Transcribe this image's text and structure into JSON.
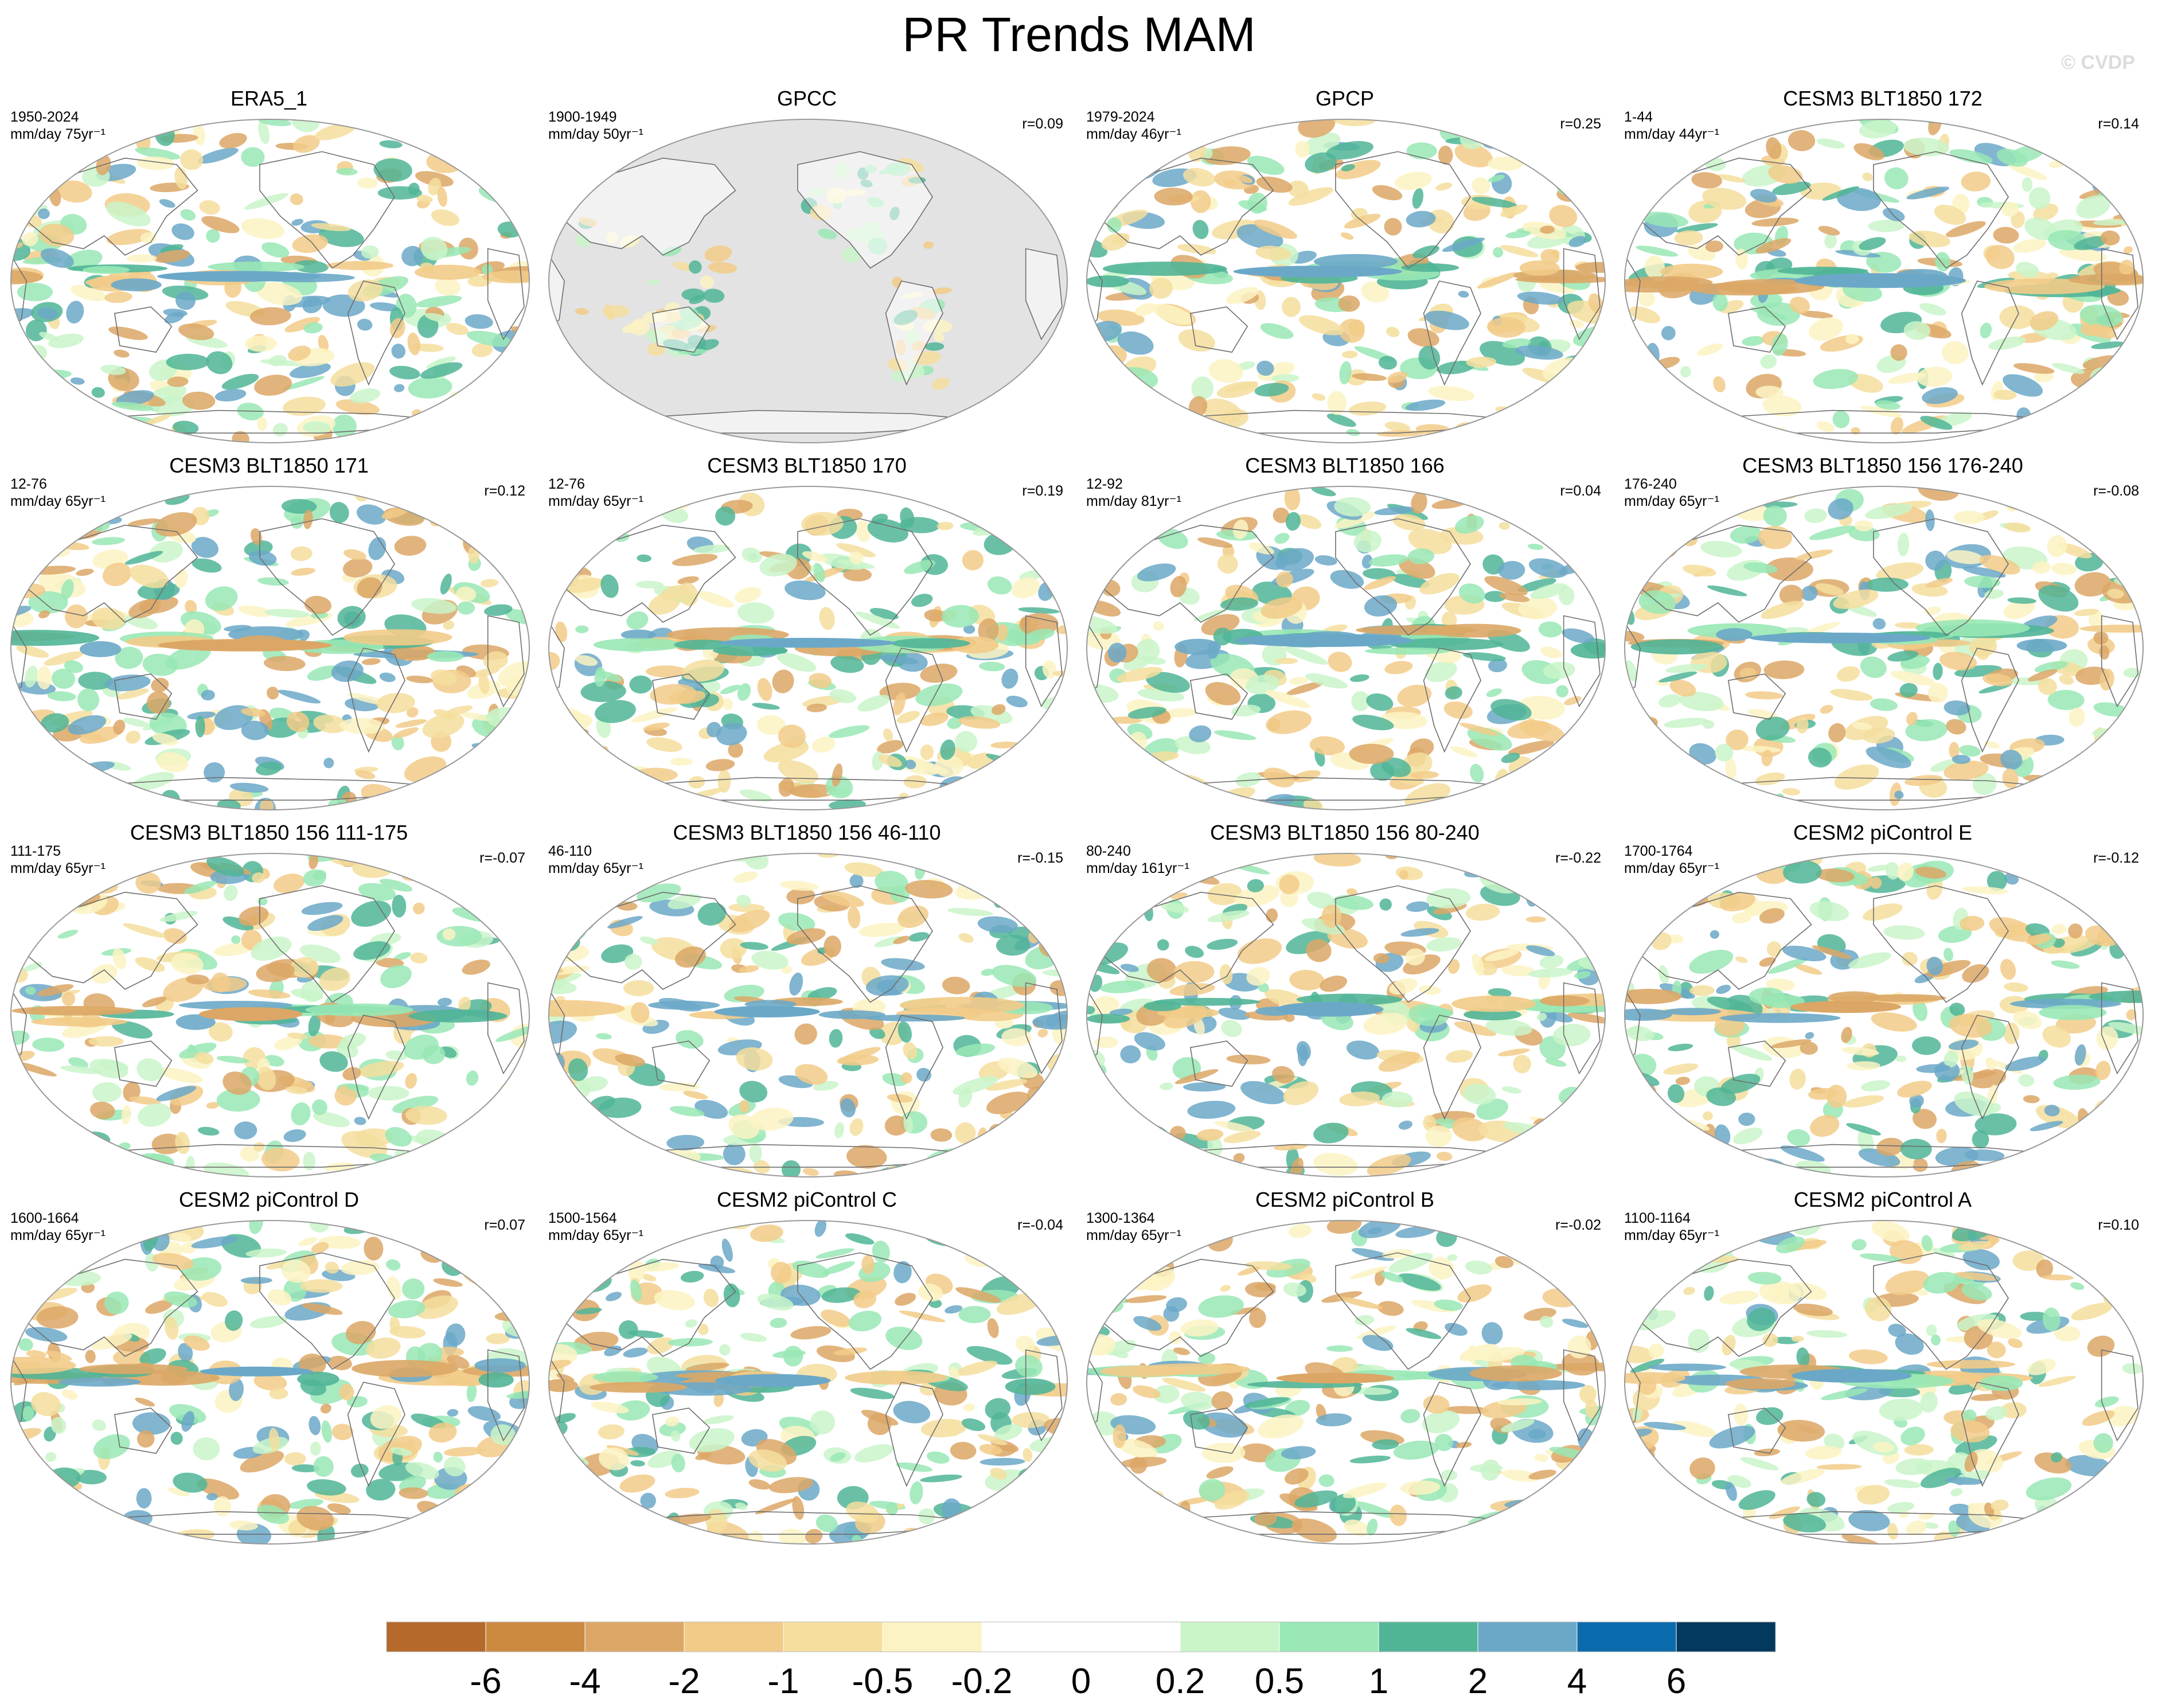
{
  "title": "PR Trends MAM",
  "watermark": "© CVDP",
  "panels": [
    {
      "title": "ERA5_1",
      "years": "1950-2024",
      "units": "mm/day 75yr⁻¹",
      "r": "",
      "masked": false
    },
    {
      "title": "GPCC",
      "years": "1900-1949",
      "units": "mm/day 50yr⁻¹",
      "r": "r=0.09",
      "masked": true
    },
    {
      "title": "GPCP",
      "years": "1979-2024",
      "units": "mm/day 46yr⁻¹",
      "r": "r=0.25",
      "masked": false
    },
    {
      "title": "CESM3 BLT1850 172",
      "years": "1-44",
      "units": "mm/day 44yr⁻¹",
      "r": "r=0.14",
      "masked": false
    },
    {
      "title": "CESM3 BLT1850 171",
      "years": "12-76",
      "units": "mm/day 65yr⁻¹",
      "r": "r=0.12",
      "masked": false
    },
    {
      "title": "CESM3 BLT1850 170",
      "years": "12-76",
      "units": "mm/day 65yr⁻¹",
      "r": "r=0.19",
      "masked": false
    },
    {
      "title": "CESM3 BLT1850 166",
      "years": "12-92",
      "units": "mm/day 81yr⁻¹",
      "r": "r=0.04",
      "masked": false
    },
    {
      "title": "CESM3 BLT1850 156 176-240",
      "years": "176-240",
      "units": "mm/day 65yr⁻¹",
      "r": "r=-0.08",
      "masked": false
    },
    {
      "title": "CESM3 BLT1850 156 111-175",
      "years": "111-175",
      "units": "mm/day 65yr⁻¹",
      "r": "r=-0.07",
      "masked": false
    },
    {
      "title": "CESM3 BLT1850 156 46-110",
      "years": "46-110",
      "units": "mm/day 65yr⁻¹",
      "r": "r=-0.15",
      "masked": false
    },
    {
      "title": "CESM3 BLT1850 156 80-240",
      "years": "80-240",
      "units": "mm/day 161yr⁻¹",
      "r": "r=-0.22",
      "masked": false
    },
    {
      "title": "CESM2 piControl E",
      "years": "1700-1764",
      "units": "mm/day 65yr⁻¹",
      "r": "r=-0.12",
      "masked": false
    },
    {
      "title": "CESM2 piControl D",
      "years": "1600-1664",
      "units": "mm/day 65yr⁻¹",
      "r": "r=0.07",
      "masked": false
    },
    {
      "title": "CESM2 piControl C",
      "years": "1500-1564",
      "units": "mm/day 65yr⁻¹",
      "r": "r=-0.04",
      "masked": false
    },
    {
      "title": "CESM2 piControl B",
      "years": "1300-1364",
      "units": "mm/day 65yr⁻¹",
      "r": "r=-0.02",
      "masked": false
    },
    {
      "title": "CESM2 piControl A",
      "years": "1100-1164",
      "units": "mm/day 65yr⁻¹",
      "r": "r=0.10",
      "masked": false
    }
  ],
  "colors": {
    "mask_gray": "#e3e3e3",
    "coast": "#6e6e6e",
    "map_border": "#999999"
  },
  "chart_data": {
    "type": "heatmap",
    "projection": "Robinson, Pacific-centered",
    "variable": "precipitation trend",
    "season": "MAM",
    "colorbar": {
      "tick_labels": [
        "-6",
        "-4",
        "-2",
        "-1",
        "-0.5",
        "-0.2",
        "0",
        "0.2",
        "0.5",
        "1",
        "2",
        "4",
        "6"
      ],
      "tick_values": [
        -6,
        -4,
        -2,
        -1,
        -0.5,
        -0.2,
        0,
        0.2,
        0.5,
        1,
        2,
        4,
        6
      ],
      "colors": [
        "#b5692b",
        "#cc8940",
        "#dca766",
        "#f2cb88",
        "#f5de9e",
        "#fbf3c3",
        "#ffffff",
        "#ffffff",
        "#c9f5c9",
        "#99e8b5",
        "#50b597",
        "#6ba8c8",
        "#0b6aab",
        "#03395c"
      ]
    }
  }
}
